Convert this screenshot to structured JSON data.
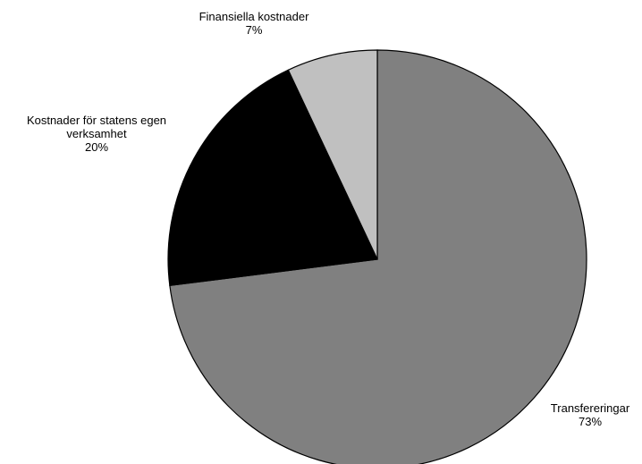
{
  "chart_data": {
    "type": "pie",
    "title": "",
    "start_angle": "12 o'clock",
    "direction": "clockwise",
    "slices": [
      {
        "label": "Transfereringar",
        "label_lines": [
          "Transfereringar"
        ],
        "percent_label": "73%",
        "value": 73,
        "color": "#808080"
      },
      {
        "label": "Kostnader för statens egen verksamhet",
        "label_lines": [
          "Kostnader för statens egen",
          "verksamhet"
        ],
        "percent_label": "20%",
        "value": 20,
        "color": "#000000"
      },
      {
        "label": "Finansiella kostnader",
        "label_lines": [
          "Finansiella kostnader"
        ],
        "percent_label": "7%",
        "value": 7,
        "color": "#c0c0c0"
      }
    ],
    "outline_color": "#000000"
  }
}
